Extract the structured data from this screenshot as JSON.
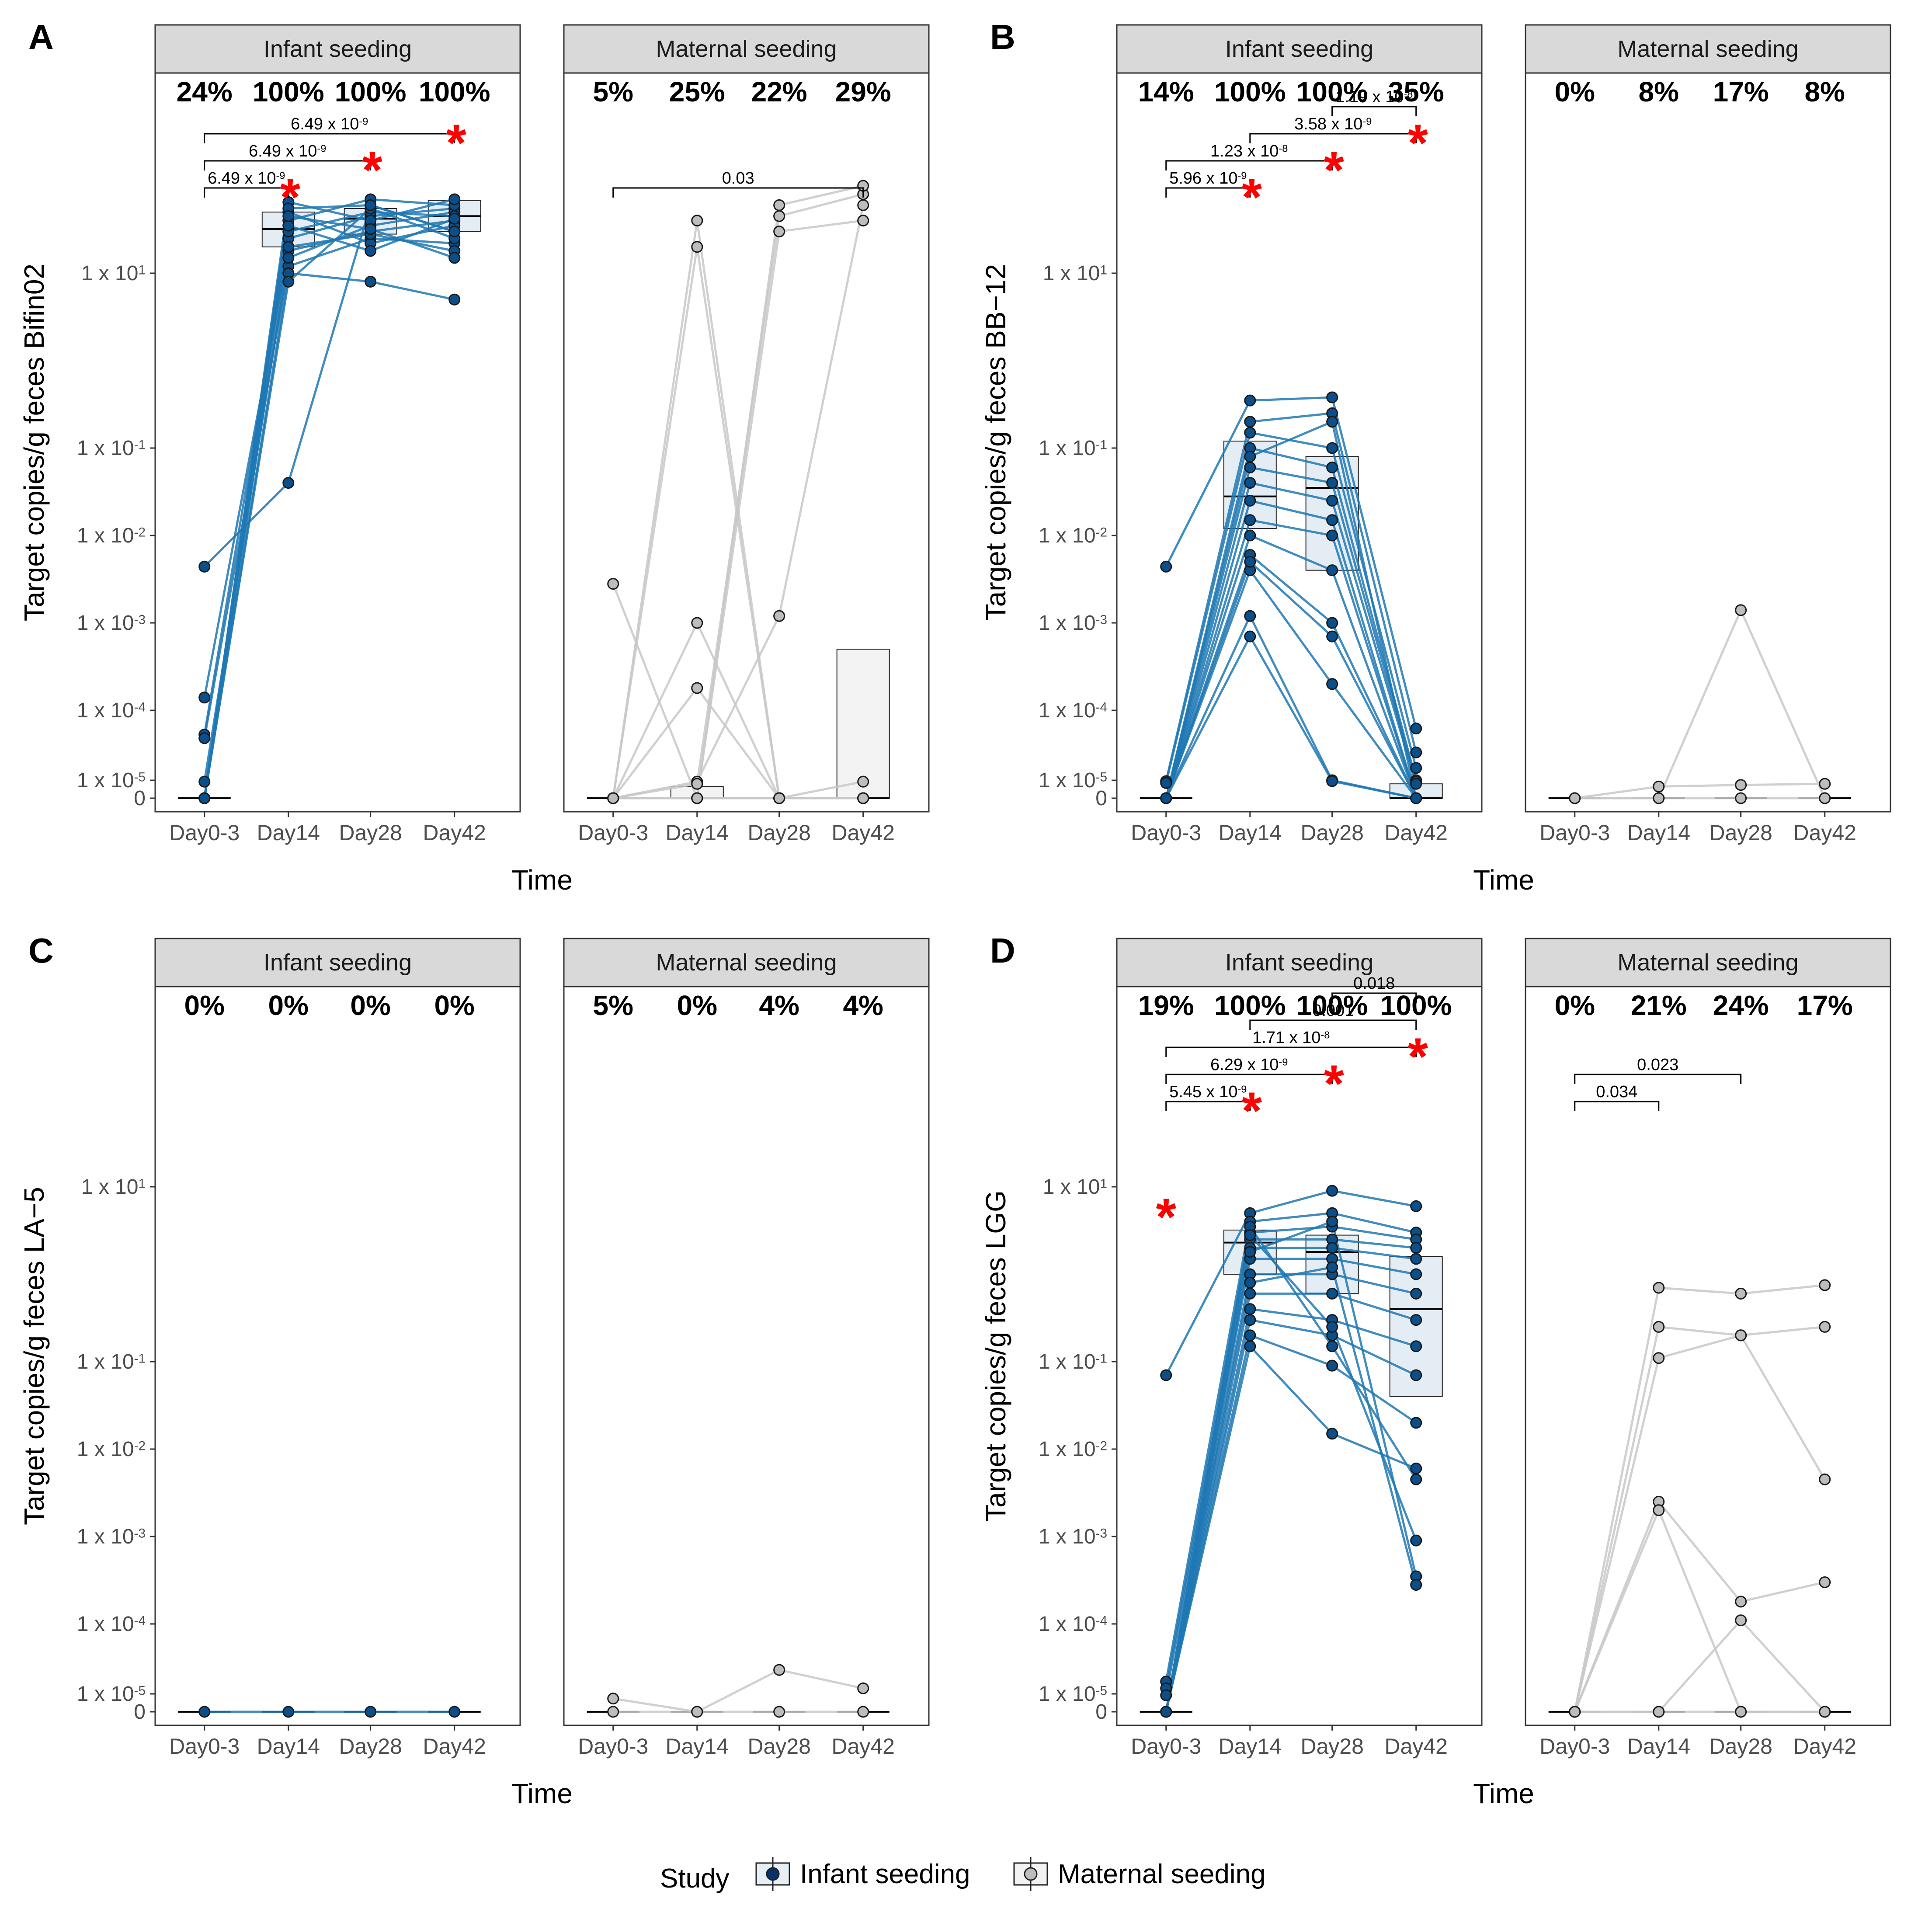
{
  "figure": {
    "x_axis_title": "Time",
    "y_ticks": [
      {
        "v": 10,
        "label": "1 x 10",
        "exp": "1"
      },
      {
        "v": 0.1,
        "label": "1 x 10",
        "exp": "-1"
      },
      {
        "v": 0.01,
        "label": "1 x 10",
        "exp": "-2"
      },
      {
        "v": 0.001,
        "label": "1 x 10",
        "exp": "-3"
      },
      {
        "v": 0.0001,
        "label": "1 x 10",
        "exp": "-4"
      },
      {
        "v": 1e-05,
        "label": "1 x 10",
        "exp": "-5"
      },
      {
        "v": 0,
        "label": "0",
        "exp": ""
      }
    ],
    "legend": {
      "title": "Study",
      "items": [
        {
          "label": "Infant seeding",
          "fill": "#08306b",
          "line": "#1f78b4",
          "box": "#e7eef5"
        },
        {
          "label": "Maternal seeding",
          "fill": "#bdbdbd",
          "line": "#bdbdbd",
          "box": "#f2f2f2"
        }
      ]
    },
    "colors": {
      "infant_point": "#0b4f8a",
      "infant_line": "#1f78b4",
      "maternal_point": "#bdbdbd",
      "maternal_line": "#c8c8c8",
      "sig_star": "#ff0000",
      "strip_bg": "#d9d9d9"
    }
  },
  "chart_data": [
    {
      "type": "scatter",
      "panel_letter": "A",
      "ylabel": "Target copies/g feces Bifin02",
      "categories": [
        "Day0-3",
        "Day14",
        "Day28",
        "Day42"
      ],
      "facets": [
        {
          "strip": "Infant seeding",
          "percents": [
            "24%",
            "100%",
            "100%",
            "100%"
          ],
          "boxes": [
            {
              "q1": 0,
              "median": 0,
              "q3": 0
            },
            {
              "q1": 20,
              "median": 32,
              "q3": 50
            },
            {
              "q1": 28,
              "median": 42,
              "q3": 55
            },
            {
              "q1": 30,
              "median": 45,
              "q3": 68
            }
          ],
          "subjects": [
            [
              0.0044,
              0.04,
              60,
              30
            ],
            [
              0.00014,
              18,
              30,
              40
            ],
            [
              4.5e-05,
              25,
              45,
              55
            ],
            [
              4e-05,
              12,
              25,
              22
            ],
            [
              7e-06,
              15,
              35,
              50
            ],
            [
              0,
              10,
              8,
              5
            ],
            [
              0,
              30,
              50,
              45
            ],
            [
              0,
              40,
              70,
              60
            ],
            [
              0,
              50,
              22,
              35
            ],
            [
              0,
              20,
              28,
              18
            ],
            [
              0,
              65,
              40,
              70
            ],
            [
              0,
              8,
              55,
              25
            ],
            [
              0,
              35,
              18,
              42
            ],
            [
              0,
              55,
              60,
              30
            ],
            [
              0,
              45,
              32,
              15
            ]
          ],
          "brackets": [
            {
              "from": 0,
              "to": 1,
              "label": "6.49 x 10",
              "exp": "-9",
              "star": true
            },
            {
              "from": 0,
              "to": 2,
              "label": "6.49 x 10",
              "exp": "-9",
              "star": true
            },
            {
              "from": 0,
              "to": 3,
              "label": "6.49 x 10",
              "exp": "-9",
              "star": true
            }
          ]
        },
        {
          "strip": "Maternal seeding",
          "percents": [
            "5%",
            "25%",
            "22%",
            "29%"
          ],
          "boxes": [
            {
              "q1": 0,
              "median": 0,
              "q3": 0
            },
            {
              "q1": 0,
              "median": 0,
              "q3": 2e-06
            },
            {
              "q1": 0,
              "median": 0,
              "q3": 0
            },
            {
              "q1": 0,
              "median": 0,
              "q3": 0.0005
            }
          ],
          "subjects": [
            [
              0.0028,
              0,
              0,
              0
            ],
            [
              0,
              0.001,
              0,
              0
            ],
            [
              0,
              0.00018,
              0,
              0
            ],
            [
              0,
              7e-06,
              0.0012,
              60
            ],
            [
              0,
              20,
              0,
              0
            ],
            [
              0,
              0,
              0,
              7e-06
            ],
            [
              0,
              40,
              0,
              0
            ],
            [
              0,
              4e-06,
              45,
              80
            ],
            [
              0,
              0,
              60,
              100
            ],
            [
              0,
              0,
              30,
              40
            ],
            [
              0,
              0,
              0,
              0
            ]
          ],
          "brackets": [
            {
              "from": 0,
              "to": 3,
              "label": "0.03",
              "exp": "",
              "star": false
            }
          ]
        }
      ]
    },
    {
      "type": "scatter",
      "panel_letter": "B",
      "ylabel": "Target copies/g feces BB−12",
      "categories": [
        "Day0-3",
        "Day14",
        "Day28",
        "Day42"
      ],
      "facets": [
        {
          "strip": "Infant seeding",
          "percents": [
            "14%",
            "100%",
            "100%",
            "35%"
          ],
          "boxes": [
            {
              "q1": 0,
              "median": 0,
              "q3": 0
            },
            {
              "q1": 0.012,
              "median": 0.028,
              "q3": 0.12
            },
            {
              "q1": 0.004,
              "median": 0.035,
              "q3": 0.08
            },
            {
              "q1": 0,
              "median": 0,
              "q3": 4e-06
            }
          ],
          "subjects": [
            [
              0.0044,
              0.35,
              0.38,
              5.5e-05
            ],
            [
              8e-06,
              0.2,
              0.25,
              2.5e-05
            ],
            [
              5e-06,
              0.15,
              0.1,
              1.5e-05
            ],
            [
              0,
              0.1,
              0.06,
              1e-05
            ],
            [
              0,
              0.06,
              0.04,
              7e-06
            ],
            [
              0,
              0.04,
              0.025,
              4e-06
            ],
            [
              0,
              0.025,
              0.015,
              0
            ],
            [
              0,
              0.015,
              0.01,
              0
            ],
            [
              0,
              0.01,
              0.004,
              0
            ],
            [
              0,
              0.006,
              0.001,
              0
            ],
            [
              0,
              0.004,
              0.0002,
              0
            ],
            [
              0,
              0.0012,
              1e-05,
              0
            ],
            [
              0,
              0.0007,
              8e-06,
              0
            ],
            [
              0,
              0.08,
              0.2,
              0
            ],
            [
              0,
              0.005,
              0.0007,
              0
            ]
          ],
          "brackets": [
            {
              "from": 0,
              "to": 1,
              "label": "5.96 x 10",
              "exp": "-9",
              "star": true
            },
            {
              "from": 0,
              "to": 2,
              "label": "1.23 x 10",
              "exp": "-8",
              "star": true
            },
            {
              "from": 1,
              "to": 3,
              "label": "3.58 x 10",
              "exp": "-9",
              "star": true
            },
            {
              "from": 2,
              "to": 3,
              "label": "1.19 x 10",
              "exp": "-8",
              "star": false
            }
          ]
        },
        {
          "strip": "Maternal seeding",
          "percents": [
            "0%",
            "8%",
            "17%",
            "8%"
          ],
          "boxes": [
            {
              "q1": 0,
              "median": 0,
              "q3": 0
            },
            {
              "q1": 0,
              "median": 0,
              "q3": 0
            },
            {
              "q1": 0,
              "median": 0,
              "q3": 0
            },
            {
              "q1": 0,
              "median": 0,
              "q3": 0
            }
          ],
          "subjects": [
            [
              0,
              0,
              0.0014,
              0
            ],
            [
              0,
              2e-06,
              3e-06,
              4e-06
            ],
            [
              0,
              0,
              0,
              0
            ]
          ],
          "brackets": []
        }
      ]
    },
    {
      "type": "scatter",
      "panel_letter": "C",
      "ylabel": "Target copies/g feces LA−5",
      "categories": [
        "Day0-3",
        "Day14",
        "Day28",
        "Day42"
      ],
      "facets": [
        {
          "strip": "Infant seeding",
          "percents": [
            "0%",
            "0%",
            "0%",
            "0%"
          ],
          "boxes": [
            {
              "q1": 0,
              "median": 0,
              "q3": 0
            },
            {
              "q1": 0,
              "median": 0,
              "q3": 0
            },
            {
              "q1": 0,
              "median": 0,
              "q3": 0
            },
            {
              "q1": 0,
              "median": 0,
              "q3": 0
            }
          ],
          "subjects": [
            [
              0,
              0,
              0,
              0
            ]
          ],
          "brackets": []
        },
        {
          "strip": "Maternal seeding",
          "percents": [
            "5%",
            "0%",
            "4%",
            "4%"
          ],
          "boxes": [
            {
              "q1": 0,
              "median": 0,
              "q3": 0
            },
            {
              "q1": 0,
              "median": 0,
              "q3": 0
            },
            {
              "q1": 0,
              "median": 0,
              "q3": 0
            },
            {
              "q1": 0,
              "median": 0,
              "q3": 0
            }
          ],
          "subjects": [
            [
              3e-06,
              0,
              2.2e-05,
              1.2e-05
            ],
            [
              0,
              0,
              0,
              0
            ]
          ],
          "brackets": []
        }
      ]
    },
    {
      "type": "scatter",
      "panel_letter": "D",
      "ylabel": "Target copies/g feces LGG",
      "categories": [
        "Day0-3",
        "Day14",
        "Day28",
        "Day42"
      ],
      "facets": [
        {
          "strip": "Infant seeding",
          "percents": [
            "19%",
            "100%",
            "100%",
            "100%"
          ],
          "boxes": [
            {
              "q1": 0,
              "median": 0,
              "q3": 0
            },
            {
              "q1": 1,
              "median": 2.3,
              "q3": 3.2
            },
            {
              "q1": 0.6,
              "median": 1.8,
              "q3": 2.8
            },
            {
              "q1": 0.04,
              "median": 0.4,
              "q3": 1.6
            }
          ],
          "subjects": [
            [
              0.07,
              5,
              9,
              6
            ],
            [
              1.5e-05,
              4,
              5,
              3
            ],
            [
              1.2e-05,
              3,
              3.5,
              2.5
            ],
            [
              7e-06,
              2.5,
              2.5,
              2
            ],
            [
              0,
              2,
              2,
              1.5
            ],
            [
              0,
              1.5,
              1.5,
              1
            ],
            [
              0,
              1,
              1,
              0.6
            ],
            [
              0,
              0.6,
              0.6,
              0.3
            ],
            [
              0,
              0.4,
              0.3,
              0.15
            ],
            [
              0,
              0.3,
              0.2,
              0.07
            ],
            [
              0,
              0.2,
              0.09,
              0.02
            ],
            [
              0,
              0.15,
              0.015,
              0.006
            ],
            [
              0,
              3.5,
              0.15,
              0.0045
            ],
            [
              0,
              2.8,
              0.25,
              0.0009
            ],
            [
              0,
              1.8,
              4,
              0.00035
            ],
            [
              0,
              0.8,
              1.2,
              0.00028
            ]
          ],
          "brackets": [
            {
              "from": 0,
              "to": 1,
              "label": "5.45 x 10",
              "exp": "-9",
              "star": true
            },
            {
              "from": 0,
              "to": 2,
              "label": "6.29 x 10",
              "exp": "-9",
              "star": true
            },
            {
              "from": 0,
              "to": 3,
              "label": "1.71 x 10",
              "exp": "-8",
              "star": true
            },
            {
              "from": 1,
              "to": 3,
              "label": "0.001",
              "exp": "",
              "star": false
            },
            {
              "from": 2,
              "to": 3,
              "label": "0.018",
              "exp": "",
              "star": false
            }
          ],
          "extra_star_day0": true
        },
        {
          "strip": "Maternal seeding",
          "percents": [
            "0%",
            "21%",
            "24%",
            "17%"
          ],
          "boxes": [
            {
              "q1": 0,
              "median": 0,
              "q3": 0
            },
            {
              "q1": 0,
              "median": 0,
              "q3": 0
            },
            {
              "q1": 0,
              "median": 0,
              "q3": 0
            },
            {
              "q1": 0,
              "median": 0,
              "q3": 0
            }
          ],
          "subjects": [
            [
              0,
              0.7,
              0.6,
              0.75
            ],
            [
              0,
              0.25,
              0.2,
              0.25
            ],
            [
              0,
              0.11,
              0.2,
              0.0045
            ],
            [
              0,
              0.0025,
              0.00018,
              0.0003
            ],
            [
              0,
              0.002,
              0,
              0
            ],
            [
              0,
              0,
              0.00011,
              0
            ],
            [
              0,
              0,
              0,
              0
            ]
          ],
          "brackets": [
            {
              "from": 0,
              "to": 1,
              "label": "0.034",
              "exp": "",
              "star": false
            },
            {
              "from": 0,
              "to": 2,
              "label": "0.023",
              "exp": "",
              "star": false
            }
          ]
        }
      ]
    }
  ]
}
